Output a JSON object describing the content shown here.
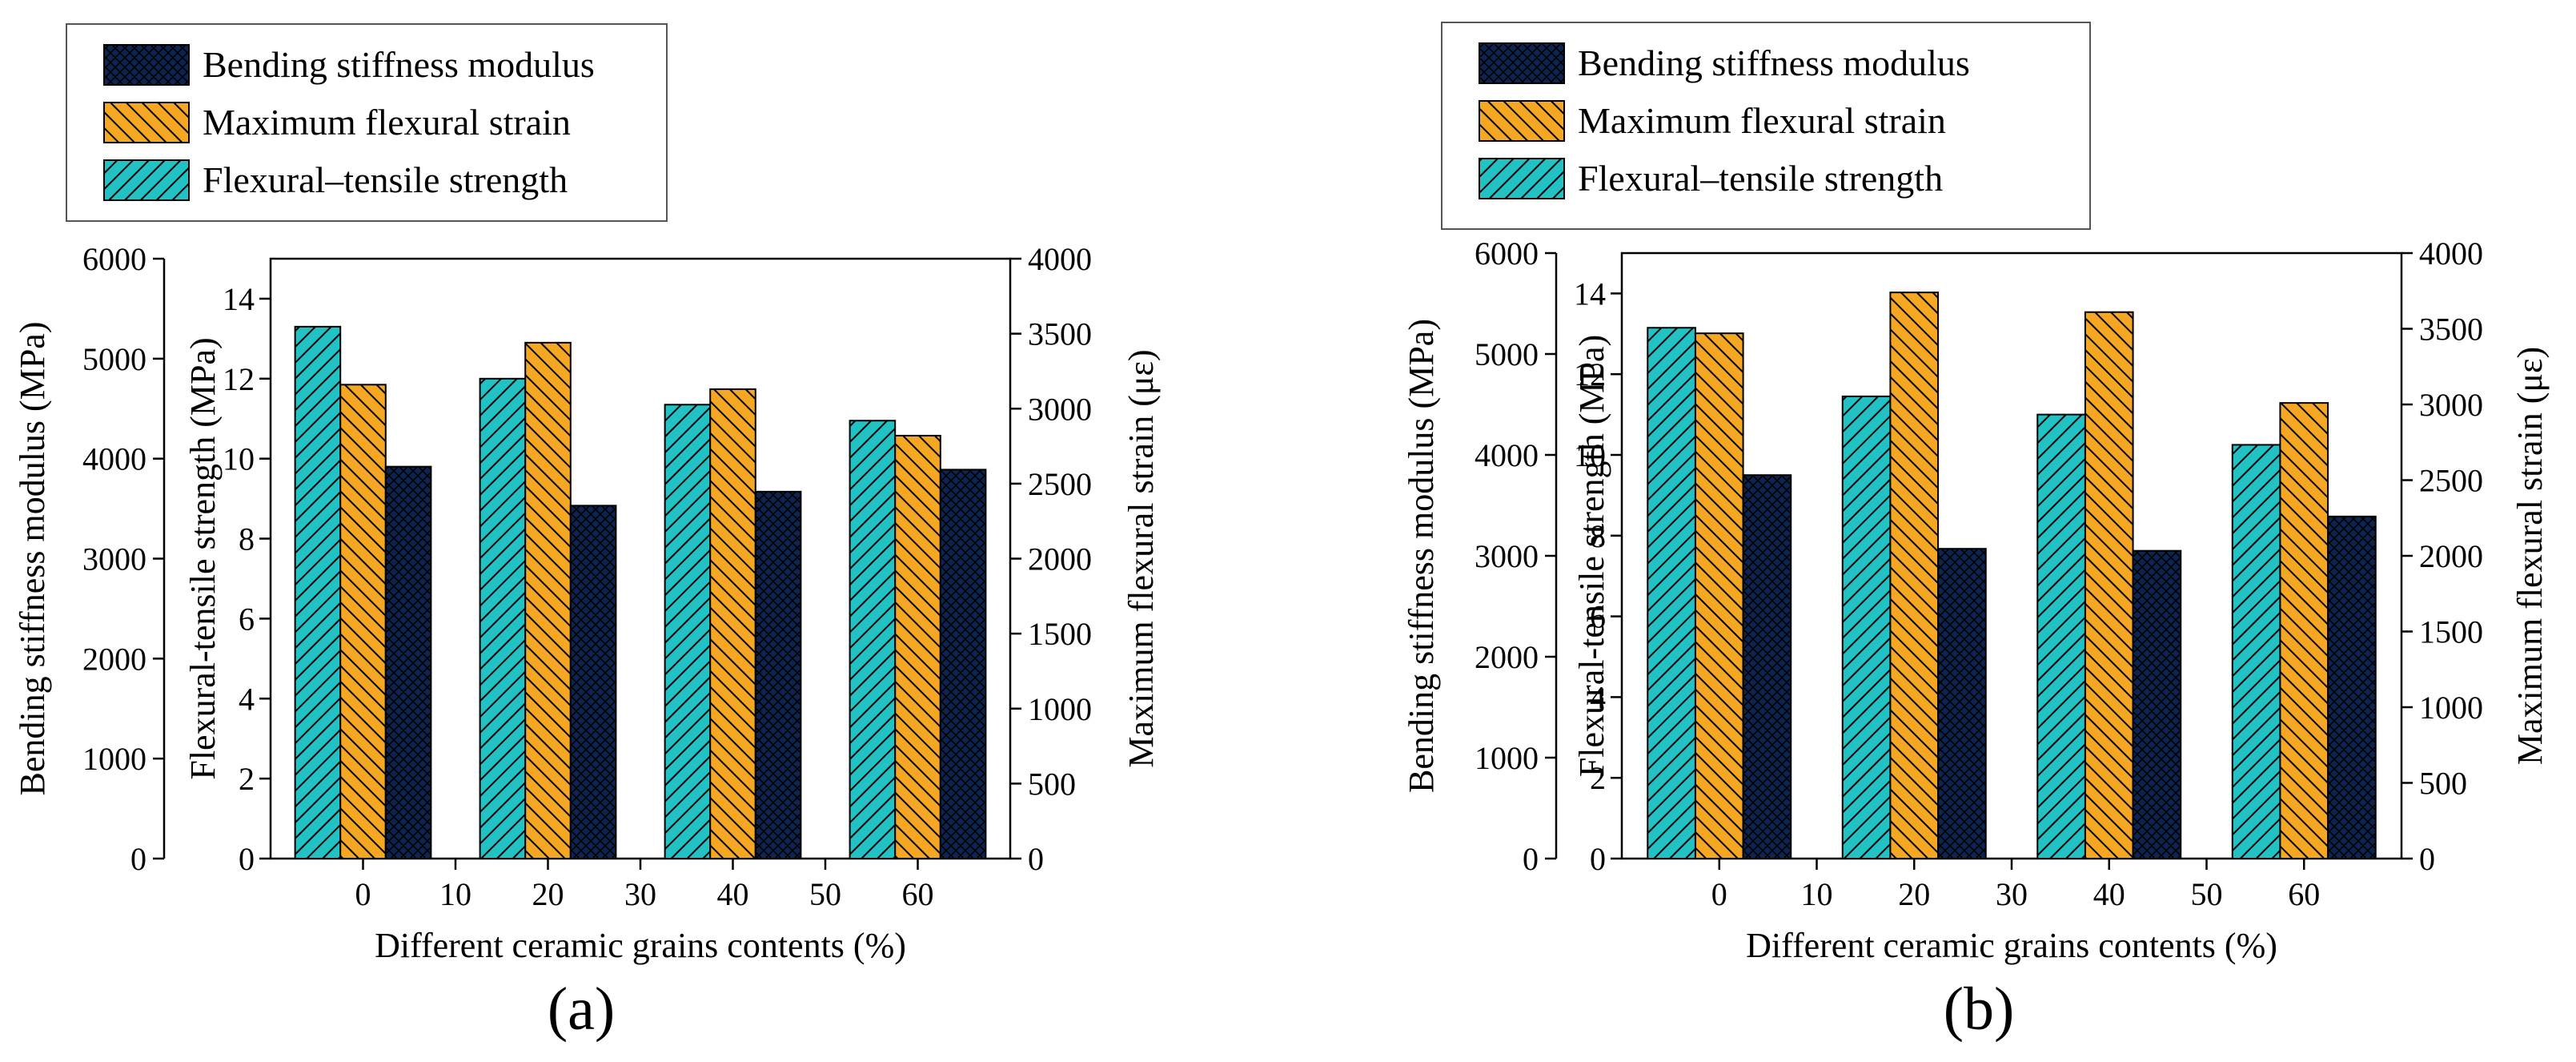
{
  "chart_data": [
    {
      "type": "bar",
      "caption": "(a)",
      "categories": [
        "0",
        "20",
        "40",
        "60"
      ],
      "xlabel": "Different ceramic grains contents (%)",
      "xticks": [
        0,
        10,
        20,
        30,
        40,
        50,
        60
      ],
      "axes": {
        "left_outer": {
          "label": "Bending stiffness modulus (MPa)",
          "lim": [
            0,
            6000
          ],
          "ticks": [
            0,
            1000,
            2000,
            3000,
            4000,
            5000,
            6000
          ]
        },
        "left_inner": {
          "label": "Flexural-tensile strength (MPa)",
          "lim": [
            0,
            15
          ],
          "ticks": [
            0,
            2,
            4,
            6,
            8,
            10,
            12,
            14
          ]
        },
        "right": {
          "label": "Maximum flexural strain (με)",
          "lim": [
            0,
            4000
          ],
          "ticks": [
            0,
            500,
            1000,
            1500,
            2000,
            2500,
            3000,
            3500,
            4000
          ]
        }
      },
      "series": [
        {
          "name": "Flexural–tensile strength",
          "axis": "left_inner",
          "color": "#22c1c3",
          "values": [
            13.3,
            12.0,
            11.35,
            10.95
          ]
        },
        {
          "name": "Maximum flexural strain",
          "axis": "right",
          "color": "#f5a623",
          "values": [
            3160,
            3440,
            3130,
            2820
          ]
        },
        {
          "name": "Bending stiffness modulus",
          "axis": "left_outer",
          "color": "#0d2350",
          "values": [
            3920,
            3530,
            3670,
            3890
          ]
        }
      ],
      "legend_order": [
        "Bending stiffness modulus",
        "Maximum flexural strain",
        "Flexural–tensile strength"
      ],
      "legend": "top-left"
    },
    {
      "type": "bar",
      "caption": "(b)",
      "categories": [
        "0",
        "20",
        "40",
        "60"
      ],
      "xlabel": "Different ceramic grains contents (%)",
      "xticks": [
        0,
        10,
        20,
        30,
        40,
        50,
        60
      ],
      "axes": {
        "left_outer": {
          "label": "Bending stiffness modulus (MPa)",
          "lim": [
            0,
            6000
          ],
          "ticks": [
            0,
            1000,
            2000,
            3000,
            4000,
            5000,
            6000
          ]
        },
        "left_inner": {
          "label": "Flexural-tensile strength (MPa)",
          "lim": [
            0,
            15
          ],
          "ticks": [
            0,
            2,
            4,
            6,
            8,
            10,
            12,
            14
          ]
        },
        "right": {
          "label": "Maximum flexural strain (με)",
          "lim": [
            0,
            4000
          ],
          "ticks": [
            0,
            500,
            1000,
            1500,
            2000,
            2500,
            3000,
            3500,
            4000
          ]
        }
      },
      "series": [
        {
          "name": "Flexural–tensile strength",
          "axis": "left_inner",
          "color": "#22c1c3",
          "values": [
            13.15,
            11.45,
            11.0,
            10.25
          ]
        },
        {
          "name": "Maximum flexural strain",
          "axis": "right",
          "color": "#f5a623",
          "values": [
            3470,
            3740,
            3610,
            3010
          ]
        },
        {
          "name": "Bending stiffness modulus",
          "axis": "left_outer",
          "color": "#0d2350",
          "values": [
            3800,
            3070,
            3050,
            3390
          ]
        }
      ],
      "legend_order": [
        "Bending stiffness modulus",
        "Maximum flexural strain",
        "Flexural–tensile strength"
      ],
      "legend": "top-left"
    }
  ]
}
